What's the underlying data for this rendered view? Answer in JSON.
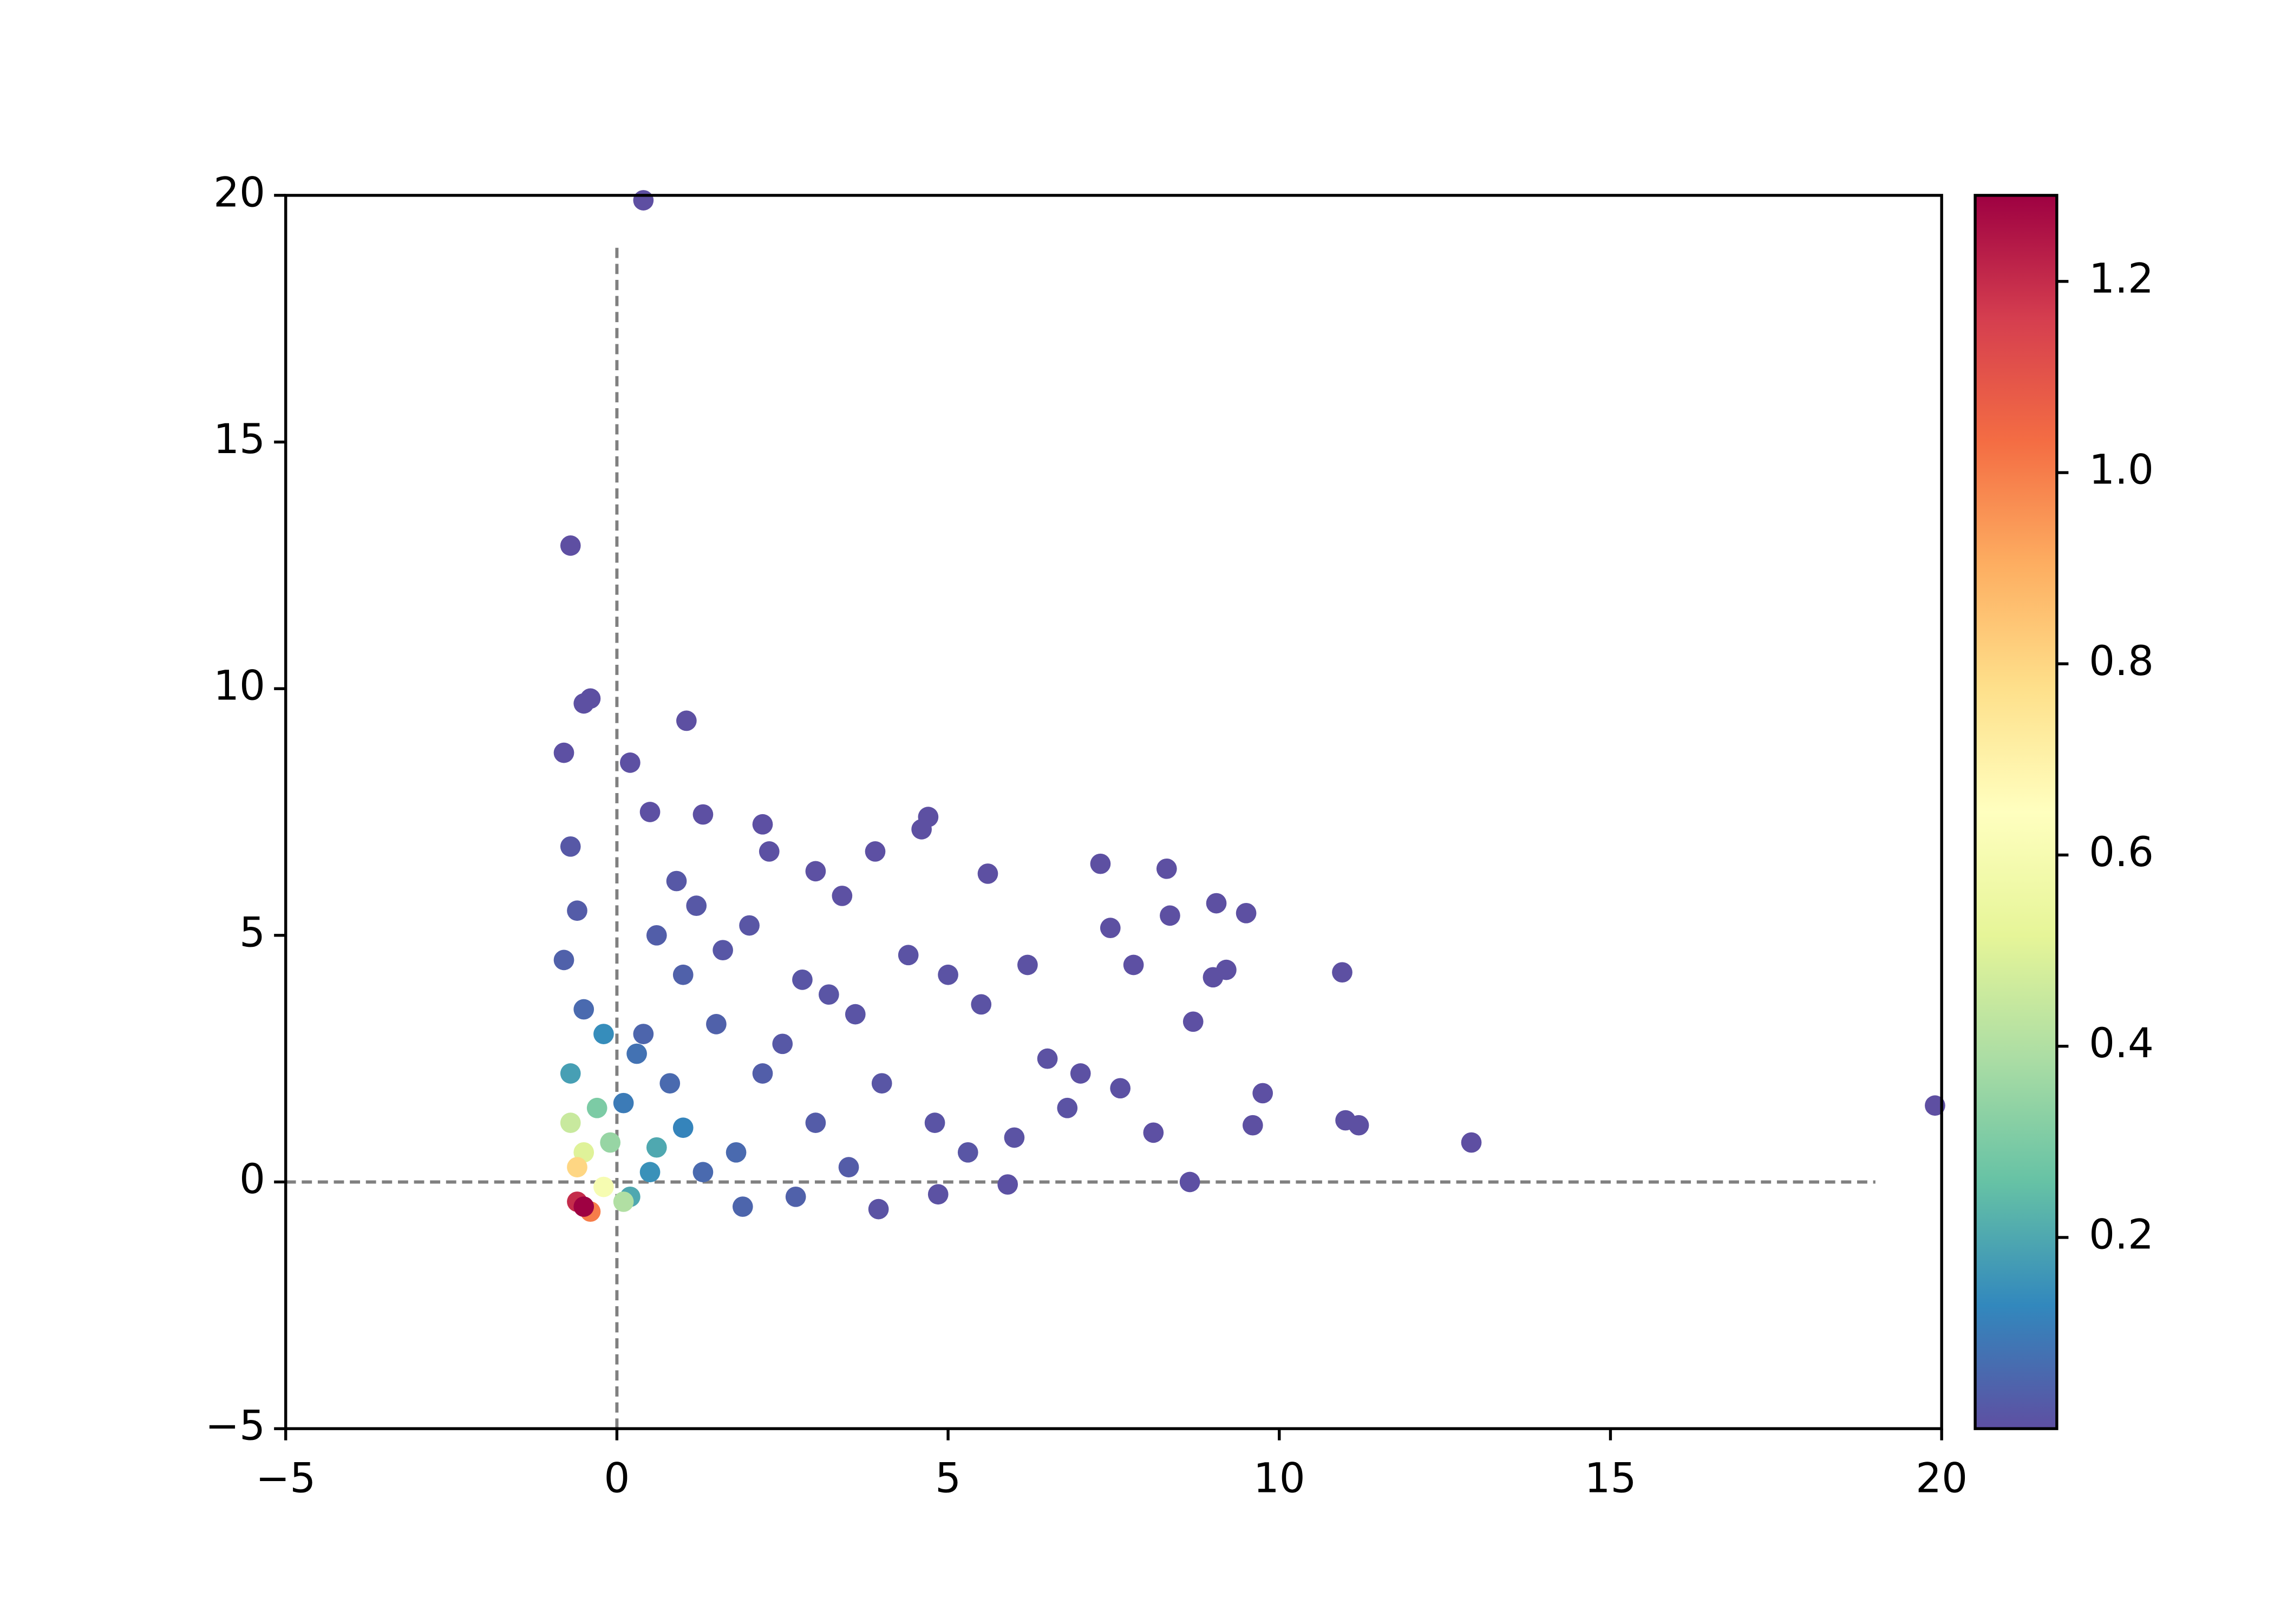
{
  "chart_data": {
    "type": "scatter",
    "xlim": [
      -5,
      20
    ],
    "ylim": [
      -5,
      20
    ],
    "xticks": [
      {
        "value": -5,
        "label": "−5"
      },
      0,
      5,
      10,
      15,
      20
    ],
    "yticks": [
      {
        "value": -5,
        "label": "−5"
      },
      0,
      5,
      10,
      15,
      20
    ],
    "vline": {
      "x": 0,
      "ymin": -5,
      "ymax": 19,
      "color": "#808080"
    },
    "hline": {
      "y": 0,
      "xmin": -5,
      "xmax": 19,
      "color": "#808080"
    },
    "colormap": [
      "#5e4fa2",
      "#3288bd",
      "#66c2a5",
      "#abdda4",
      "#e6f598",
      "#ffffbf",
      "#fee08b",
      "#fdae61",
      "#f46d43",
      "#d53e4f",
      "#9e0142"
    ],
    "clim": [
      0.0,
      1.29
    ],
    "cticks": [
      0.2,
      0.4,
      0.6,
      0.8,
      {
        "value": 1.0,
        "label": "1.0"
      },
      1.2
    ],
    "x": [
      0.4,
      -0.7,
      -0.5,
      -0.4,
      1.05,
      -0.8,
      0.2,
      0.5,
      1.3,
      2.2,
      4.7,
      4.6,
      5.6,
      3.9,
      7.3,
      8.3,
      9.05,
      9.5,
      8.35,
      10.95,
      7.45,
      9.2,
      9.0,
      8.7,
      9.75,
      11.0,
      11.2,
      12.9,
      19.9,
      8.65,
      5.9,
      4.85,
      3.95,
      9.6,
      8.1,
      7.8,
      3.4,
      3.0,
      2.3,
      6.5,
      7.0,
      7.6,
      6.2,
      5.5,
      5.0,
      4.4,
      3.6,
      3.2,
      2.8,
      2.5,
      2.0,
      1.6,
      1.2,
      0.9,
      4.0,
      4.8,
      5.3,
      6.0,
      6.8,
      3.0,
      2.2,
      1.5,
      1.0,
      0.6,
      3.5,
      2.7,
      1.9,
      1.3,
      0.8,
      0.4,
      -0.7,
      -0.6,
      -0.8,
      -0.5,
      0.1,
      0.3,
      1.8,
      1.0,
      0.5,
      -0.2,
      -0.7,
      0.2,
      0.6,
      -0.3,
      -0.1,
      0.1,
      -0.7,
      -0.5,
      -0.2,
      -0.6,
      -0.4,
      -0.6,
      -0.5
    ],
    "y": [
      19.9,
      12.9,
      9.7,
      9.8,
      9.35,
      8.7,
      8.5,
      7.5,
      7.45,
      7.25,
      7.4,
      7.15,
      6.25,
      6.7,
      6.45,
      6.35,
      5.65,
      5.45,
      5.4,
      4.25,
      5.15,
      4.3,
      4.15,
      3.25,
      1.8,
      1.25,
      1.15,
      0.8,
      1.55,
      0.0,
      -0.05,
      -0.25,
      -0.55,
      1.15,
      1.0,
      4.4,
      5.8,
      6.3,
      6.7,
      2.5,
      2.2,
      1.9,
      4.4,
      3.6,
      4.2,
      4.6,
      3.4,
      3.8,
      4.1,
      2.8,
      5.2,
      4.7,
      5.6,
      6.1,
      2.0,
      1.2,
      0.6,
      0.9,
      1.5,
      1.2,
      2.2,
      3.2,
      4.2,
      5.0,
      0.3,
      -0.3,
      -0.5,
      0.2,
      2.0,
      3.0,
      6.8,
      5.5,
      4.5,
      3.5,
      1.6,
      2.6,
      0.6,
      1.1,
      0.2,
      3.0,
      2.2,
      -0.3,
      0.7,
      1.5,
      0.8,
      -0.4,
      1.2,
      0.6,
      -0.1,
      0.3,
      -0.6,
      -0.4,
      -0.5
    ],
    "c": [
      0.001,
      0.001,
      0.002,
      0.002,
      0.002,
      0.003,
      0.003,
      0.003,
      0.003,
      0.003,
      0.002,
      0.002,
      0.002,
      0.003,
      0.002,
      0.002,
      0.002,
      0.002,
      0.002,
      0.002,
      0.002,
      0.002,
      0.002,
      0.003,
      0.003,
      0.002,
      0.002,
      0.001,
      0.001,
      0.003,
      0.005,
      0.006,
      0.008,
      0.002,
      0.003,
      0.003,
      0.004,
      0.004,
      0.005,
      0.006,
      0.005,
      0.005,
      0.006,
      0.008,
      0.009,
      0.01,
      0.012,
      0.013,
      0.014,
      0.02,
      0.015,
      0.018,
      0.02,
      0.02,
      0.015,
      0.012,
      0.015,
      0.01,
      0.008,
      0.03,
      0.035,
      0.04,
      0.04,
      0.035,
      0.03,
      0.04,
      0.05,
      0.06,
      0.06,
      0.05,
      0.02,
      0.03,
      0.04,
      0.06,
      0.1,
      0.08,
      0.06,
      0.12,
      0.15,
      0.14,
      0.18,
      0.2,
      0.2,
      0.3,
      0.35,
      0.4,
      0.45,
      0.5,
      0.6,
      0.8,
      1.0,
      1.2,
      1.29
    ]
  }
}
